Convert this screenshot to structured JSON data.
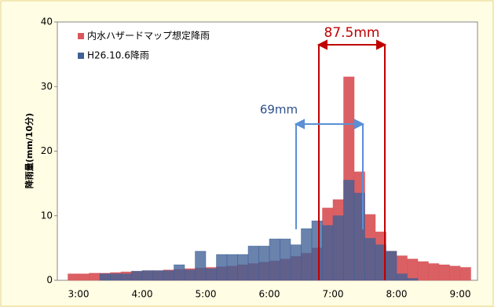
{
  "chart_data": {
    "type": "bar",
    "y_label": "降雨量(mm/10分)",
    "categories": [
      null,
      null,
      "3:00",
      null,
      null,
      null,
      null,
      null,
      "4:00",
      null,
      null,
      null,
      null,
      null,
      "5:00",
      null,
      null,
      null,
      null,
      null,
      "6:00",
      null,
      null,
      null,
      null,
      null,
      "7:00",
      null,
      null,
      null,
      null,
      null,
      "8:00",
      null,
      null,
      null,
      null,
      null,
      "9:00"
    ],
    "series": [
      {
        "name": "内水ハザードマップ想定降雨",
        "color": "#d9575c",
        "values": [
          0,
          1.0,
          1.0,
          1.1,
          1.1,
          1.2,
          1.3,
          1.4,
          1.5,
          1.5,
          1.6,
          1.7,
          1.8,
          1.9,
          2.0,
          2.1,
          2.2,
          2.4,
          2.6,
          2.8,
          3.0,
          3.3,
          3.7,
          4.2,
          5.0,
          11.2,
          12.5,
          31.5,
          16.8,
          10.2,
          7.5,
          4.5,
          3.8,
          3.3,
          2.9,
          2.6,
          2.4,
          2.2,
          2.0
        ]
      },
      {
        "name": "H26.10.6降雨",
        "color": "#3f6096",
        "values": [
          0,
          0,
          0,
          0,
          1.0,
          1.0,
          1.0,
          1.4,
          1.5,
          1.5,
          1.5,
          2.4,
          1.6,
          4.5,
          1.8,
          4.0,
          4.0,
          4.0,
          5.3,
          5.3,
          6.4,
          6.4,
          5.5,
          8.0,
          9.2,
          8.5,
          10.0,
          15.5,
          13.5,
          6.5,
          5.5,
          4.5,
          1.0,
          0.3,
          0,
          0,
          0,
          0,
          0
        ]
      }
    ],
    "annotations": [
      "87.5mm",
      "69mm"
    ],
    "ylim": [
      0,
      40
    ],
    "yticks": [
      0,
      10,
      20,
      30,
      40
    ],
    "legend": "upper left"
  }
}
